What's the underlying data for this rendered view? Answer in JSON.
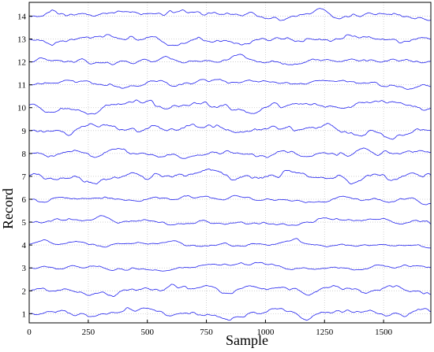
{
  "chart_data": {
    "type": "line",
    "title": "",
    "xlabel": "Sample",
    "ylabel": "Record",
    "xlim": [
      0,
      1700
    ],
    "ylim": [
      0.6,
      14.6
    ],
    "x_ticks": [
      0,
      250,
      500,
      750,
      1000,
      1250,
      1500
    ],
    "y_ticks": [
      1,
      2,
      3,
      4,
      5,
      6,
      7,
      8,
      9,
      10,
      11,
      12,
      13,
      14
    ],
    "grid": true,
    "legend": "none",
    "series_color": "#2020ee",
    "grid_color": "#c8c8c8",
    "num_points": 700,
    "series": [
      {
        "offset": 1,
        "amplitude": 0.12
      },
      {
        "offset": 2,
        "amplitude": 0.12
      },
      {
        "offset": 3,
        "amplitude": 0.1
      },
      {
        "offset": 4,
        "amplitude": 0.12
      },
      {
        "offset": 5,
        "amplitude": 0.12
      },
      {
        "offset": 6,
        "amplitude": 0.1
      },
      {
        "offset": 7,
        "amplitude": 0.14
      },
      {
        "offset": 8,
        "amplitude": 0.1
      },
      {
        "offset": 9,
        "amplitude": 0.16
      },
      {
        "offset": 10,
        "amplitude": 0.14
      },
      {
        "offset": 11,
        "amplitude": 0.1
      },
      {
        "offset": 12,
        "amplitude": 0.14
      },
      {
        "offset": 13,
        "amplitude": 0.12
      },
      {
        "offset": 14,
        "amplitude": 0.14
      }
    ]
  }
}
